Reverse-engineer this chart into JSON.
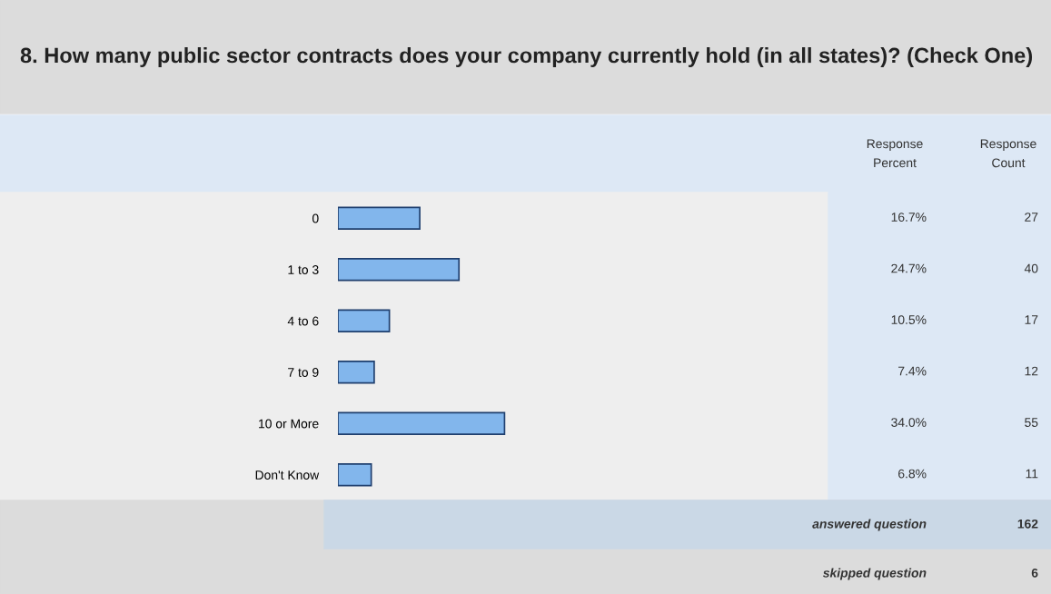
{
  "chart_data": {
    "type": "bar",
    "orientation": "horizontal",
    "title": "8. How many public sector contracts does your company currently hold (in all states)? (Check One)",
    "categories": [
      "0",
      "1 to 3",
      "4 to 6",
      "7 to 9",
      "10 or More",
      "Don't Know"
    ],
    "values": [
      16.7,
      24.7,
      10.5,
      7.4,
      34.0,
      6.8
    ],
    "value_labels": [
      "16.7%",
      "24.7%",
      "10.5%",
      "7.4%",
      "34.0%",
      "6.8%"
    ],
    "color": "#82b6ec",
    "annotations": [
      "Response\nPercent",
      "Response\nCount",
      "27",
      "40",
      "17",
      "12",
      "55",
      "11",
      "answered question",
      "162",
      "skipped question",
      "6"
    ]
  }
}
